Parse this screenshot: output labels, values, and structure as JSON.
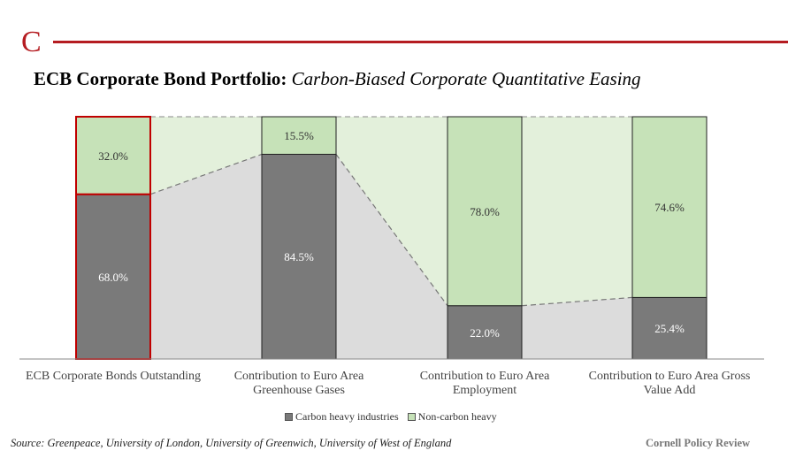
{
  "header": {
    "logo_letter": "C",
    "title_main": "ECB Corporate Bond Portfolio:",
    "title_sub": "Carbon-Biased Corporate Quantitative Easing"
  },
  "chart_data": {
    "type": "bar",
    "stacked": true,
    "categories": [
      [
        "ECB Corporate Bonds Outstanding"
      ],
      [
        "Contribution to Euro Area",
        "Greenhouse Gases"
      ],
      [
        "Contribution to Euro Area",
        "Employment"
      ],
      [
        "Contribution to Euro Area Gross",
        "Value Add"
      ]
    ],
    "series": [
      {
        "name": "Carbon heavy industries",
        "values": [
          68.0,
          84.5,
          22.0,
          25.4
        ],
        "labels": [
          "68.0%",
          "84.5%",
          "22.0%",
          "25.4%"
        ],
        "color": "#7a7a7a"
      },
      {
        "name": "Non-carbon heavy",
        "values": [
          32.0,
          15.5,
          78.0,
          74.6
        ],
        "labels": [
          "32.0%",
          "15.5%",
          "78.0%",
          "74.6%"
        ],
        "color": "#c6e2b8"
      }
    ],
    "ylim": [
      0,
      100
    ],
    "highlight_category_index": 0,
    "highlight_color": "#c00000",
    "connector_fill_lower": "#dcdcdc",
    "connector_fill_upper": "#e3f0db",
    "title": "",
    "xlabel": "",
    "ylabel": "",
    "grid": false,
    "legend_position": "bottom-center"
  },
  "footer": {
    "source": "Source: Greenpeace, University of London, University of Greenwich, University of West of England",
    "brand": "Cornell Policy Review"
  }
}
